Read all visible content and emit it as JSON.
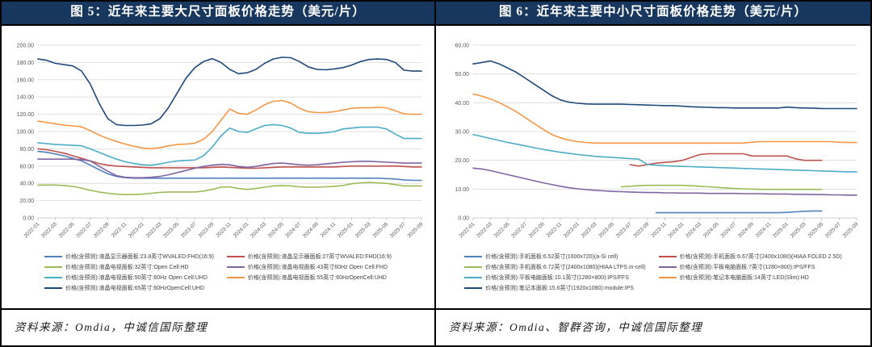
{
  "panels": [
    {
      "title": "图 5：近年来主要大尺寸面板价格走势（美元/片）",
      "source": "资料来源：Omdia，中诚信国际整理"
    },
    {
      "title": "图 6：近年来主要中小尺寸面板价格走势（美元/片）",
      "source": "资料来源：Omdia、智群咨询，中诚信国际整理"
    }
  ],
  "colors": {
    "title_bg": "#17375E",
    "border": "#000000",
    "grid": "#D9D9D9",
    "axis": "#BFBFBF",
    "axis_text": "#595959",
    "blue": "#4F81BD",
    "red": "#C0504D",
    "green": "#9BBB59",
    "purple": "#8064A2",
    "cyan": "#4BACC6",
    "orange": "#F79646",
    "navy": "#1F497D"
  },
  "chart_data": [
    {
      "type": "line",
      "title": "图 5：近年来主要大尺寸面板价格走势（美元/片）",
      "xlabel": "",
      "ylabel": "",
      "ylim": [
        0,
        200
      ],
      "ytick_step": 20,
      "grid": true,
      "legend_position": "bottom",
      "x_tick_every": 2,
      "x": [
        "2022-01",
        "2022-02",
        "2022-03",
        "2022-04",
        "2022-05",
        "2022-06",
        "2022-07",
        "2022-08",
        "2022-09",
        "2022-10",
        "2022-11",
        "2022-12",
        "2023-01",
        "2023-02",
        "2023-03",
        "2023-04",
        "2023-05",
        "2023-06",
        "2023-07",
        "2023-08",
        "2023-09",
        "2023-10",
        "2023-11",
        "2023-12",
        "2024-01",
        "2024-02",
        "2024-03",
        "2024-04",
        "2024-05",
        "2024-06",
        "2024-07",
        "2024-08",
        "2024-09",
        "2024-10",
        "2024-11",
        "2024-12",
        "2025-01",
        "2025-02",
        "2025-03",
        "2025-04",
        "2025-05",
        "2025-06",
        "2025-07",
        "2025-08",
        "2025-09"
      ],
      "series": [
        {
          "name": "价格(含预测):液晶显示器面板:23.8英寸WVALED:FHD(16:9)",
          "color": "#4F81BD",
          "values": [
            77,
            76,
            74,
            72,
            69,
            66,
            61,
            56,
            51,
            48,
            46.5,
            46,
            46,
            46,
            46,
            46,
            46,
            46,
            46,
            46,
            46,
            46,
            46,
            46,
            46,
            46,
            46,
            46,
            46,
            46,
            46,
            46,
            46,
            46,
            46,
            46,
            46,
            46,
            46,
            46,
            45.5,
            45,
            44,
            43.5,
            43.5
          ]
        },
        {
          "name": "价格(含预测):液晶显示器面板:27英寸WVALED:FHD(16:9)",
          "color": "#C0504D",
          "values": [
            80,
            79,
            77,
            75,
            72,
            69,
            66,
            63,
            61,
            60,
            59.5,
            59,
            58.5,
            58,
            58,
            58,
            58,
            58,
            58,
            58,
            58.5,
            59,
            58.5,
            58,
            57.5,
            57.5,
            58,
            58.5,
            59,
            59,
            59,
            59,
            59,
            59,
            59,
            59.5,
            60,
            60,
            60,
            60,
            60,
            60,
            59.5,
            59,
            59
          ]
        },
        {
          "name": "价格(含预测):液晶电视面板:32英寸:Open Cell:HD",
          "color": "#9BBB59",
          "values": [
            38,
            38,
            38,
            37.5,
            36.5,
            34.5,
            32,
            30,
            28.5,
            27.5,
            27,
            27,
            27.5,
            28.5,
            29.5,
            30,
            30,
            30,
            30,
            31,
            33,
            35.5,
            36,
            34,
            33,
            34,
            35.5,
            37,
            37.5,
            37,
            36,
            35.5,
            35.5,
            36,
            36.5,
            37.5,
            39.5,
            40.5,
            41,
            40.5,
            40,
            38.5,
            37,
            37,
            37
          ]
        },
        {
          "name": "价格(含预测):液晶电视面板:43英寸60Hz Open Cell:FHD",
          "color": "#8064A2",
          "values": [
            68,
            68,
            68,
            68,
            68,
            67.5,
            66,
            60,
            54,
            49,
            47,
            46.5,
            46.5,
            47,
            48,
            50,
            52.5,
            55,
            57.5,
            59.5,
            61,
            62,
            61.5,
            59.5,
            58.5,
            59.5,
            61.5,
            63,
            63.5,
            62.5,
            61.5,
            61,
            61.5,
            62.5,
            63.5,
            64.5,
            65,
            65.5,
            65.5,
            65,
            64.5,
            64,
            63.5,
            63.5,
            63.5
          ]
        },
        {
          "name": "价格(含预测):液晶电视面板:50英寸:60Hz Open Cell:UHD",
          "color": "#4BACC6",
          "values": [
            87,
            86,
            85,
            84.5,
            84,
            83.5,
            80,
            76,
            72,
            68,
            65,
            63,
            61.5,
            61,
            62.5,
            64.5,
            66,
            66.5,
            67,
            72,
            82,
            95,
            104,
            100,
            99,
            103,
            107,
            108,
            107,
            104,
            99,
            98,
            98,
            98.5,
            100,
            103,
            104,
            105,
            105,
            105,
            103,
            97,
            92,
            92,
            92
          ]
        },
        {
          "name": "价格(含预测):液晶电视面板:55英寸:60HzOpenCell:UHD",
          "color": "#F79646",
          "values": [
            112,
            110.5,
            109,
            107.5,
            106.5,
            105.5,
            101,
            96,
            92,
            88.5,
            85.5,
            83,
            81,
            80,
            81.5,
            83.5,
            85,
            85.5,
            86.5,
            91,
            100,
            113,
            126,
            121,
            120,
            125,
            131,
            135,
            136,
            133,
            127,
            123,
            122,
            122,
            123,
            125,
            127,
            127.5,
            127.5,
            128,
            127.5,
            124,
            120.5,
            120,
            120
          ]
        },
        {
          "name": "价格(含预测):液晶电视面板:65英寸:60HzOpenCell:UHD",
          "color": "#1F497D",
          "values": [
            184,
            182.5,
            179,
            177.5,
            176,
            170,
            155,
            133,
            115,
            108,
            107,
            107,
            107.5,
            109,
            115,
            128,
            145,
            162,
            174,
            181,
            184.5,
            180,
            172,
            167,
            168,
            172,
            179,
            184,
            186,
            185.5,
            181,
            175,
            172,
            171.5,
            172.5,
            174,
            177,
            181,
            183.5,
            184,
            183.5,
            180,
            171,
            170,
            170
          ]
        }
      ]
    },
    {
      "type": "line",
      "title": "图 6：近年来主要中小尺寸面板价格走势（美元/片）",
      "xlabel": "",
      "ylabel": "",
      "ylim": [
        0,
        60
      ],
      "ytick_step": 10,
      "grid": true,
      "legend_position": "bottom",
      "x_tick_every": 2,
      "x": [
        "2022-01",
        "2022-02",
        "2022-03",
        "2022-04",
        "2022-05",
        "2022-06",
        "2022-07",
        "2022-08",
        "2022-09",
        "2022-10",
        "2022-11",
        "2022-12",
        "2023-01",
        "2023-02",
        "2023-03",
        "2023-04",
        "2023-05",
        "2023-06",
        "2023-07",
        "2023-08",
        "2023-09",
        "2023-10",
        "2023-11",
        "2023-12",
        "2024-01",
        "2024-02",
        "2024-03",
        "2024-04",
        "2024-05",
        "2024-06",
        "2024-07",
        "2024-08",
        "2024-09",
        "2024-10",
        "2024-11",
        "2024-12",
        "2025-01",
        "2025-02",
        "2025-03",
        "2025-04",
        "2025-05",
        "2025-06",
        "2025-07",
        "2025-08",
        "2025-09"
      ],
      "series": [
        {
          "name": "价格(含预测):手机面板:6.52英寸(1600x720)(a-Si cell)",
          "color": "#4F81BD",
          "values": [
            null,
            null,
            null,
            null,
            null,
            null,
            null,
            null,
            null,
            null,
            null,
            null,
            null,
            null,
            null,
            null,
            null,
            null,
            null,
            null,
            null,
            1.8,
            1.8,
            1.8,
            1.8,
            1.8,
            1.8,
            1.8,
            1.8,
            1.8,
            1.8,
            1.8,
            1.8,
            1.8,
            1.8,
            1.8,
            1.9,
            2.1,
            2.3,
            2.4,
            2.4,
            null,
            null,
            null,
            null
          ]
        },
        {
          "name": "价格(含预测):手机面板:6.67英寸(2400x1080)(HIAA FOLED 2.5D)",
          "color": "#C0504D",
          "values": [
            null,
            null,
            null,
            null,
            null,
            null,
            null,
            null,
            null,
            null,
            null,
            null,
            null,
            null,
            null,
            null,
            null,
            null,
            18.5,
            18,
            18.5,
            19,
            19.3,
            19.5,
            20,
            21,
            22,
            22.3,
            22.3,
            22.3,
            22.3,
            22.3,
            21.5,
            21.5,
            21.5,
            21.5,
            21.5,
            20.5,
            20,
            20,
            20,
            null,
            null,
            null,
            null
          ]
        },
        {
          "name": "价格(含预测):手机面板:6.72英寸(2400x1080)(HIAA LTPS in-cell)",
          "color": "#9BBB59",
          "values": [
            null,
            null,
            null,
            null,
            null,
            null,
            null,
            null,
            null,
            null,
            null,
            null,
            null,
            null,
            null,
            null,
            null,
            10.8,
            11,
            11.2,
            11.3,
            11.3,
            11.3,
            11.3,
            11.3,
            11.2,
            11,
            10.8,
            10.6,
            10.4,
            10.2,
            10.1,
            10,
            9.9,
            9.9,
            9.9,
            9.9,
            9.9,
            9.9,
            9.9,
            9.9,
            null,
            null,
            null,
            null
          ]
        },
        {
          "name": "价格(含预测):平板电脑面板:7英寸(1280×800):IPS/FFS",
          "color": "#8064A2",
          "values": [
            17.3,
            17,
            16.4,
            15.7,
            15,
            14.3,
            13.6,
            12.9,
            12.2,
            11.6,
            11,
            10.5,
            10.1,
            9.8,
            9.6,
            9.4,
            9.2,
            9.1,
            9,
            8.9,
            8.8,
            8.8,
            8.7,
            8.7,
            8.6,
            8.6,
            8.6,
            8.5,
            8.5,
            8.5,
            8.5,
            8.4,
            8.4,
            8.4,
            8.3,
            8.3,
            8.3,
            8.2,
            8.2,
            8.1,
            8.1,
            8,
            8,
            7.9,
            7.9
          ]
        },
        {
          "name": "价格(含预测):平板电脑面板:10.1英寸(1280×800):IPS/FFS",
          "color": "#4BACC6",
          "values": [
            29,
            28.3,
            27.6,
            26.9,
            26.2,
            25.6,
            25,
            24.4,
            23.8,
            23.3,
            22.8,
            22.4,
            22,
            21.7,
            21.4,
            21.2,
            21,
            20.8,
            20.6,
            20.4,
            18.5,
            18.3,
            18.1,
            18,
            17.9,
            17.8,
            17.7,
            17.6,
            17.5,
            17.4,
            17.3,
            17.2,
            17.1,
            17,
            16.9,
            16.8,
            16.7,
            16.6,
            16.5,
            16.4,
            16.3,
            16.2,
            16.1,
            16,
            16
          ]
        },
        {
          "name": "价格(含预测):笔记本电脑面板:14英寸:LED(Slim):HD",
          "color": "#F79646",
          "values": [
            43,
            42.3,
            41.3,
            40,
            38.5,
            36.8,
            34.8,
            32.8,
            30.8,
            29,
            27.8,
            27,
            26.5,
            26.2,
            26,
            26,
            26,
            26,
            26,
            26,
            26,
            26,
            26,
            26,
            26,
            26,
            26,
            26,
            26,
            26,
            26,
            26,
            26.3,
            26.5,
            26.5,
            26.5,
            26.5,
            26.5,
            26.5,
            26.5,
            26.5,
            26.5,
            26.3,
            26.2,
            26.2
          ]
        },
        {
          "name": "价格(含预测):笔记本面板:15.6英寸(1920x1080):module:IPS",
          "color": "#1F497D",
          "values": [
            53.5,
            54,
            54.5,
            53.5,
            52,
            50.5,
            48.5,
            46.5,
            44.5,
            42.5,
            41,
            40.2,
            39.8,
            39.6,
            39.5,
            39.5,
            39.5,
            39.5,
            39.4,
            39.3,
            39.2,
            39.1,
            39,
            39,
            38.8,
            38.6,
            38.5,
            38.4,
            38.3,
            38.3,
            38.2,
            38.2,
            38.2,
            38.2,
            38.2,
            38.2,
            38.5,
            38.3,
            38.2,
            38.1,
            38,
            38,
            38,
            38,
            38
          ]
        }
      ]
    }
  ]
}
